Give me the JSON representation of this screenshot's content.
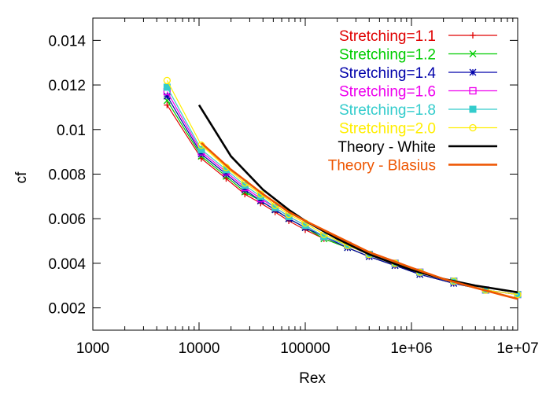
{
  "chart_data": {
    "type": "line",
    "xlabel": "Rex",
    "ylabel": "cf",
    "xscale": "log",
    "xlim": [
      1000,
      10000000
    ],
    "ylim": [
      0.001,
      0.015
    ],
    "x_ticks": [
      1000,
      10000,
      100000,
      1000000,
      10000000
    ],
    "x_tick_labels": [
      "1000",
      "10000",
      "100000",
      "1e+06",
      "1e+07"
    ],
    "y_ticks": [
      0.002,
      0.004,
      0.006,
      0.008,
      0.01,
      0.012,
      0.014
    ],
    "y_tick_labels": [
      "0.002",
      "0.004",
      "0.006",
      "0.008",
      "0.01",
      "0.012",
      "0.014"
    ],
    "legend_position": "top-right",
    "grid": false,
    "series": [
      {
        "name": "Stretching=1.1",
        "color": "#e00000",
        "marker": "plus",
        "x": [
          5000,
          10500,
          18000,
          27000,
          38000,
          52000,
          70000,
          100000,
          150000,
          250000,
          400000,
          700000,
          1200000,
          2500000,
          5000000,
          10000000
        ],
        "y": [
          0.0111,
          0.0087,
          0.0078,
          0.0071,
          0.0067,
          0.0063,
          0.0059,
          0.0055,
          0.0051,
          0.0047,
          0.0043,
          0.0039,
          0.0035,
          0.0031,
          0.0028,
          0.0026
        ]
      },
      {
        "name": "Stretching=1.2",
        "color": "#00cc00",
        "marker": "cross",
        "x": [
          5000,
          10500,
          18000,
          27000,
          38000,
          52000,
          70000,
          100000,
          150000,
          250000,
          400000,
          700000,
          1200000,
          2500000,
          5000000,
          10000000
        ],
        "y": [
          0.0113,
          0.0088,
          0.0079,
          0.0072,
          0.0068,
          0.0064,
          0.006,
          0.0056,
          0.0051,
          0.0047,
          0.0043,
          0.0039,
          0.0035,
          0.0031,
          0.0028,
          0.0026
        ]
      },
      {
        "name": "Stretching=1.4",
        "color": "#0000aa",
        "marker": "star",
        "x": [
          5000,
          10500,
          18000,
          27000,
          38000,
          52000,
          70000,
          100000,
          150000,
          250000,
          400000,
          700000,
          1200000,
          2500000,
          5000000,
          10000000
        ],
        "y": [
          0.0115,
          0.0089,
          0.008,
          0.0073,
          0.0068,
          0.0064,
          0.006,
          0.0056,
          0.0052,
          0.0047,
          0.0043,
          0.0039,
          0.0035,
          0.0031,
          0.0028,
          0.0026
        ]
      },
      {
        "name": "Stretching=1.6",
        "color": "#ee00ee",
        "marker": "square",
        "x": [
          5000,
          10500,
          18000,
          27000,
          38000,
          52000,
          70000,
          100000,
          150000,
          250000,
          400000,
          700000,
          1200000,
          2500000,
          5000000,
          10000000
        ],
        "y": [
          0.0117,
          0.009,
          0.0081,
          0.0074,
          0.0069,
          0.0065,
          0.0061,
          0.0057,
          0.0052,
          0.0048,
          0.0044,
          0.004,
          0.0036,
          0.0032,
          0.0028,
          0.0026
        ]
      },
      {
        "name": "Stretching=1.8",
        "color": "#33cccc",
        "marker": "filled-square",
        "x": [
          5000,
          10500,
          18000,
          27000,
          38000,
          52000,
          70000,
          100000,
          150000,
          250000,
          400000,
          700000,
          1200000,
          2500000,
          5000000,
          10000000
        ],
        "y": [
          0.0119,
          0.0091,
          0.0082,
          0.0075,
          0.007,
          0.0065,
          0.0061,
          0.0057,
          0.0052,
          0.0048,
          0.0044,
          0.004,
          0.0036,
          0.0032,
          0.0028,
          0.0026
        ]
      },
      {
        "name": "Stretching=2.0",
        "color": "#ffee00",
        "marker": "circle",
        "x": [
          5000,
          10500,
          18000,
          27000,
          38000,
          52000,
          70000,
          100000,
          150000,
          250000,
          400000,
          700000,
          1200000,
          2500000,
          5000000,
          10000000
        ],
        "y": [
          0.0122,
          0.0093,
          0.0083,
          0.0076,
          0.0071,
          0.0066,
          0.0062,
          0.0058,
          0.0053,
          0.0048,
          0.0044,
          0.004,
          0.0036,
          0.0032,
          0.0028,
          0.0026
        ]
      },
      {
        "name": "Theory - White",
        "color": "#000000",
        "marker": "none",
        "x": [
          10000,
          20000,
          40000,
          70000,
          100000,
          200000,
          400000,
          1000000,
          2000000,
          4000000,
          10000000
        ],
        "y": [
          0.0111,
          0.0088,
          0.0073,
          0.0064,
          0.0059,
          0.0051,
          0.0044,
          0.0037,
          0.0033,
          0.003,
          0.0027
        ]
      },
      {
        "name": "Theory - Blasius",
        "color": "#ee5500",
        "marker": "none",
        "x": [
          10500,
          20000,
          40000,
          70000,
          100000,
          200000,
          400000,
          1000000,
          2000000,
          4000000,
          10000000
        ],
        "y": [
          0.0094,
          0.0082,
          0.0071,
          0.0063,
          0.0059,
          0.0052,
          0.0045,
          0.0038,
          0.0033,
          0.0029,
          0.0024
        ]
      }
    ]
  }
}
